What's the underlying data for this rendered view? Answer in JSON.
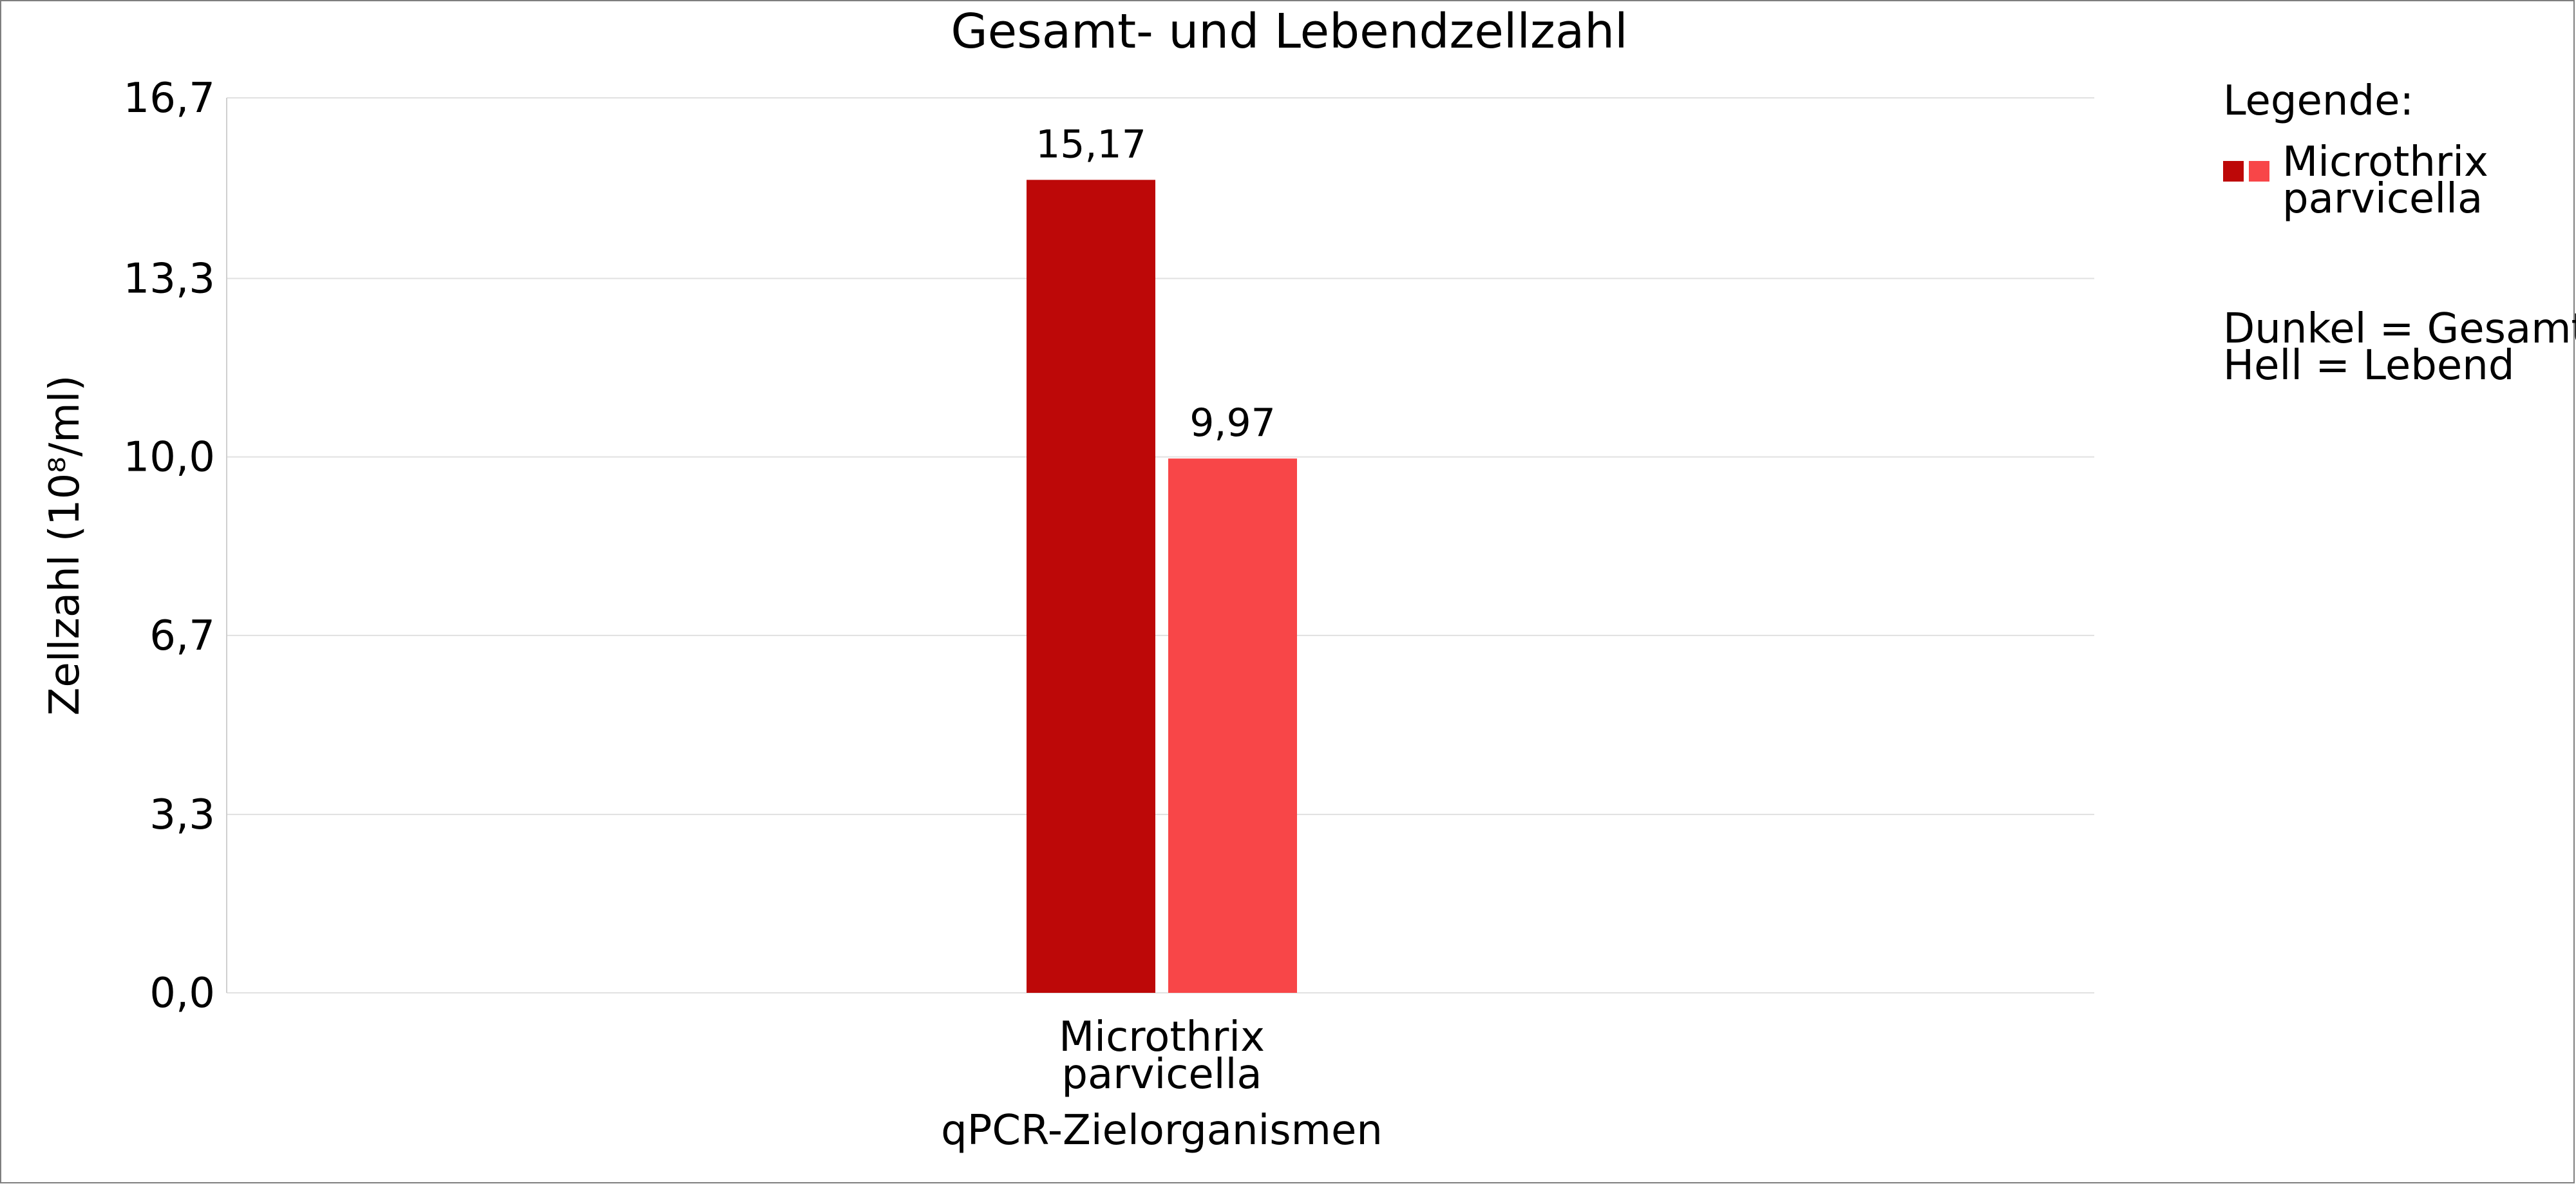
{
  "chart_data": {
    "type": "bar",
    "title": "Gesamt- und Lebendzellzahl",
    "xlabel": "qPCR-Zielorganismen",
    "ylabel": "Zellzahl (10⁸/ml)",
    "ylim": [
      0,
      16.7
    ],
    "yticks": [
      "0,0",
      "3,3",
      "6,7",
      "10,0",
      "13,3",
      "16,7"
    ],
    "ytick_values": [
      0,
      3.33,
      6.67,
      10.0,
      13.33,
      16.7
    ],
    "grid": true,
    "categories": [
      {
        "line1": "Microthrix",
        "line2": "parvicella"
      }
    ],
    "series": [
      {
        "values": [
          15.17
        ],
        "labels": [
          "15,17"
        ],
        "color": "#bd0808"
      },
      {
        "values": [
          9.97
        ],
        "labels": [
          "9,97"
        ],
        "color": "#f84648"
      }
    ],
    "legend": {
      "position": "right",
      "heading": "Legende:",
      "entry_line1": "Microthrix",
      "entry_line2": "parvicella",
      "note_line1": "Dunkel = Gesamt",
      "note_line2": "Hell = Lebend"
    }
  }
}
